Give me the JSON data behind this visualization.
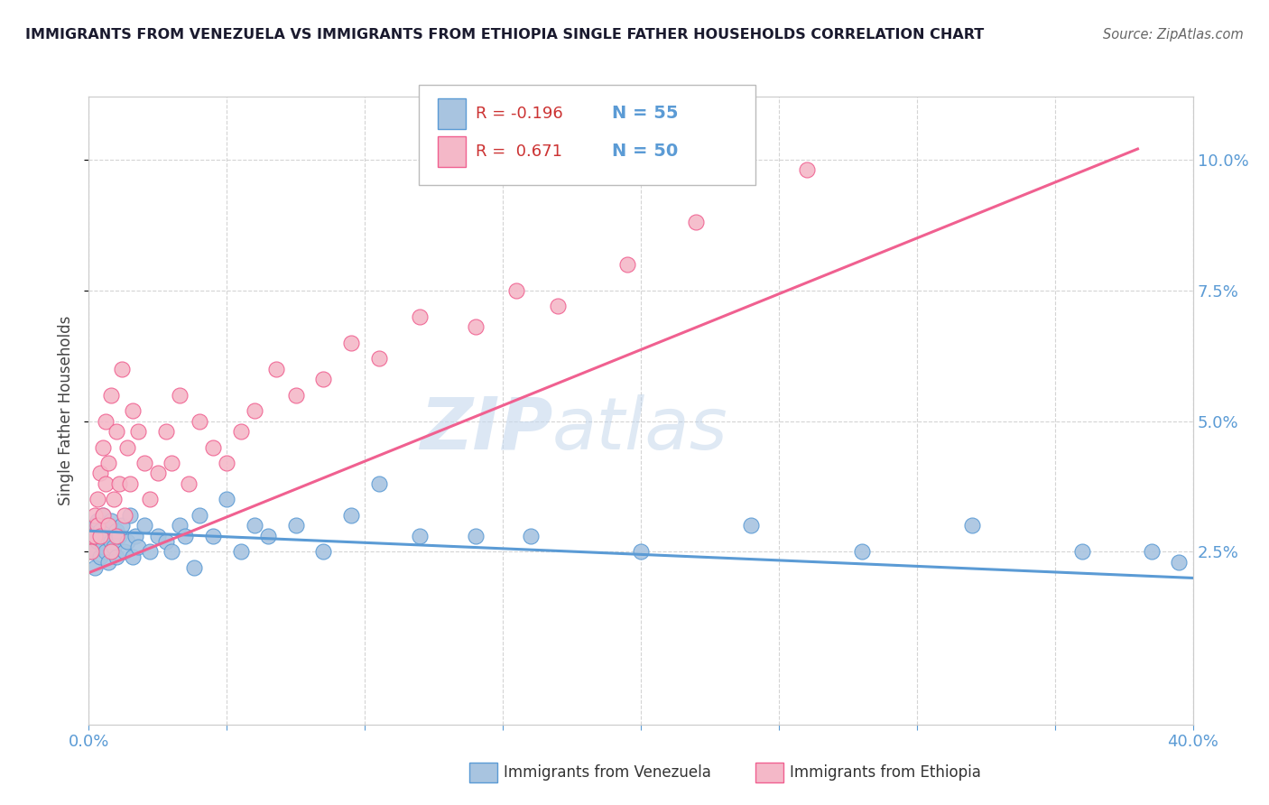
{
  "title": "IMMIGRANTS FROM VENEZUELA VS IMMIGRANTS FROM ETHIOPIA SINGLE FATHER HOUSEHOLDS CORRELATION CHART",
  "source": "Source: ZipAtlas.com",
  "ylabel": "Single Father Households",
  "xlim": [
    0.0,
    0.4
  ],
  "ylim": [
    -0.008,
    0.112
  ],
  "color_venezuela": "#a8c4e0",
  "color_ethiopia": "#f4b8c8",
  "color_line_venezuela": "#5b9bd5",
  "color_line_ethiopia": "#f06090",
  "watermark_zip": "ZIP",
  "watermark_atlas": "atlas",
  "background_color": "#ffffff",
  "grid_color": "#d0d0d0",
  "venezuela_x": [
    0.001,
    0.001,
    0.002,
    0.002,
    0.003,
    0.003,
    0.004,
    0.004,
    0.005,
    0.005,
    0.006,
    0.006,
    0.007,
    0.007,
    0.008,
    0.008,
    0.009,
    0.01,
    0.01,
    0.011,
    0.012,
    0.013,
    0.014,
    0.015,
    0.016,
    0.017,
    0.018,
    0.02,
    0.022,
    0.025,
    0.028,
    0.03,
    0.033,
    0.035,
    0.038,
    0.04,
    0.045,
    0.05,
    0.055,
    0.06,
    0.065,
    0.075,
    0.085,
    0.095,
    0.105,
    0.12,
    0.14,
    0.16,
    0.2,
    0.24,
    0.28,
    0.32,
    0.36,
    0.385,
    0.395
  ],
  "venezuela_y": [
    0.028,
    0.025,
    0.03,
    0.022,
    0.027,
    0.031,
    0.024,
    0.029,
    0.026,
    0.032,
    0.028,
    0.025,
    0.03,
    0.023,
    0.027,
    0.031,
    0.026,
    0.029,
    0.024,
    0.028,
    0.03,
    0.025,
    0.027,
    0.032,
    0.024,
    0.028,
    0.026,
    0.03,
    0.025,
    0.028,
    0.027,
    0.025,
    0.03,
    0.028,
    0.022,
    0.032,
    0.028,
    0.035,
    0.025,
    0.03,
    0.028,
    0.03,
    0.025,
    0.032,
    0.038,
    0.028,
    0.028,
    0.028,
    0.025,
    0.03,
    0.025,
    0.03,
    0.025,
    0.025,
    0.023
  ],
  "ethiopia_x": [
    0.001,
    0.001,
    0.002,
    0.002,
    0.003,
    0.003,
    0.004,
    0.004,
    0.005,
    0.005,
    0.006,
    0.006,
    0.007,
    0.007,
    0.008,
    0.008,
    0.009,
    0.01,
    0.01,
    0.011,
    0.012,
    0.013,
    0.014,
    0.015,
    0.016,
    0.018,
    0.02,
    0.022,
    0.025,
    0.028,
    0.03,
    0.033,
    0.036,
    0.04,
    0.045,
    0.05,
    0.055,
    0.06,
    0.068,
    0.075,
    0.085,
    0.095,
    0.105,
    0.12,
    0.14,
    0.155,
    0.17,
    0.195,
    0.22,
    0.26
  ],
  "ethiopia_y": [
    0.028,
    0.025,
    0.032,
    0.028,
    0.035,
    0.03,
    0.04,
    0.028,
    0.045,
    0.032,
    0.038,
    0.05,
    0.03,
    0.042,
    0.025,
    0.055,
    0.035,
    0.048,
    0.028,
    0.038,
    0.06,
    0.032,
    0.045,
    0.038,
    0.052,
    0.048,
    0.042,
    0.035,
    0.04,
    0.048,
    0.042,
    0.055,
    0.038,
    0.05,
    0.045,
    0.042,
    0.048,
    0.052,
    0.06,
    0.055,
    0.058,
    0.065,
    0.062,
    0.07,
    0.068,
    0.075,
    0.072,
    0.08,
    0.088,
    0.098
  ],
  "venezuela_line_x": [
    0.0,
    0.4
  ],
  "venezuela_line_y": [
    0.029,
    0.02
  ],
  "ethiopia_line_x": [
    0.0,
    0.38
  ],
  "ethiopia_line_y": [
    0.021,
    0.102
  ]
}
